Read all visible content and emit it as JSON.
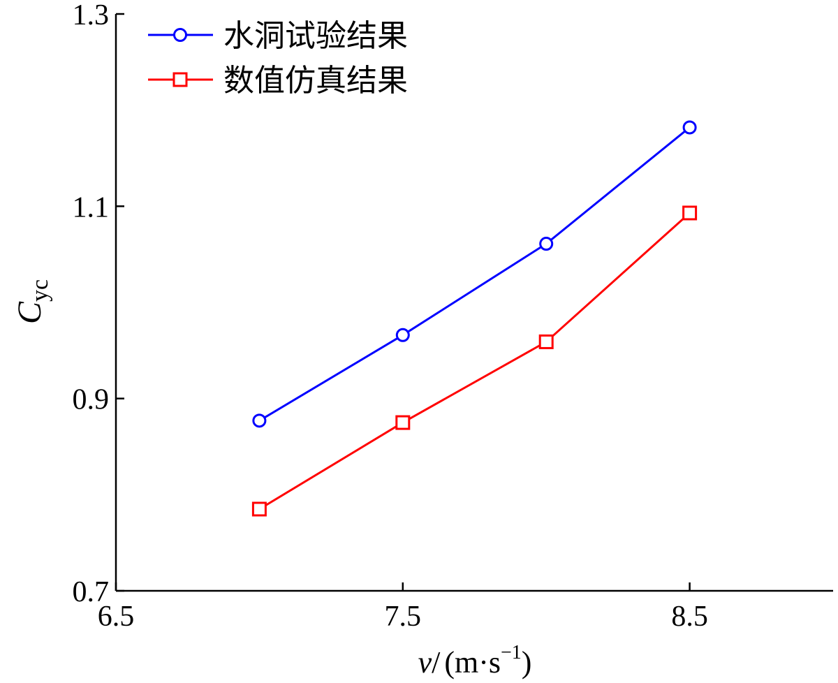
{
  "chart_data": {
    "type": "line",
    "x": [
      7.0,
      7.5,
      8.0,
      8.5
    ],
    "xlim": [
      6.5,
      9.0
    ],
    "ylim": [
      0.7,
      1.3
    ],
    "xticks": [
      6.5,
      7.5,
      8.5
    ],
    "yticks": [
      0.7,
      0.9,
      1.1,
      1.3
    ],
    "xtick_labels": [
      "6.5",
      "7.5",
      "8.5"
    ],
    "ytick_labels": [
      "0.7",
      "0.9",
      "1.1",
      "1.3"
    ],
    "xlabel": {
      "var": "v",
      "slash": "/",
      "unit_open": "(m·s",
      "exp": "−1",
      "unit_close": ")"
    },
    "ylabel": {
      "main": "C",
      "sub": "yc"
    },
    "series": [
      {
        "name": "水洞试验结果",
        "color": "#0000ff",
        "marker": "circle",
        "values": [
          0.877,
          0.966,
          1.061,
          1.182
        ]
      },
      {
        "name": "数值仿真结果",
        "color": "#ff0000",
        "marker": "square",
        "values": [
          0.785,
          0.875,
          0.959,
          1.093
        ]
      }
    ],
    "legend_position": "top-left",
    "grid": false
  }
}
